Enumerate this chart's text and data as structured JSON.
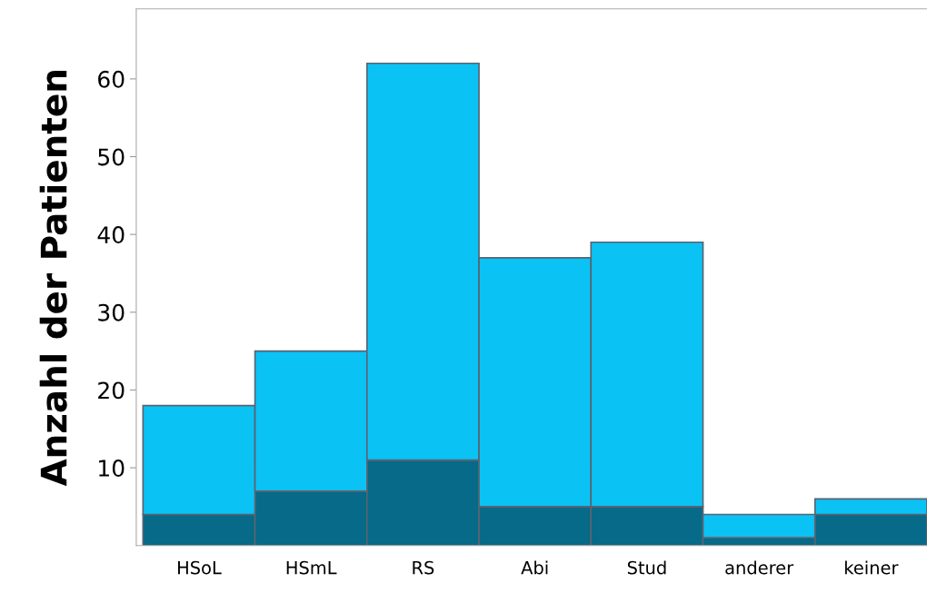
{
  "chart_data": {
    "type": "bar",
    "stacked": true,
    "ylabel": "Anzahl der Patienten",
    "categories": [
      "HSoL",
      "HSmL",
      "RS",
      "Abi",
      "Stud",
      "anderer",
      "keiner"
    ],
    "series": [
      {
        "color": "#066a88",
        "values": [
          4,
          7,
          11,
          5,
          5,
          1,
          4
        ]
      },
      {
        "color": "#0bc2f5",
        "values": [
          14,
          18,
          51,
          32,
          34,
          3,
          2
        ]
      }
    ],
    "ylim": [
      0,
      69
    ],
    "yticks": [
      10,
      20,
      30,
      40,
      50,
      60
    ],
    "grid": false,
    "legend": false
  }
}
